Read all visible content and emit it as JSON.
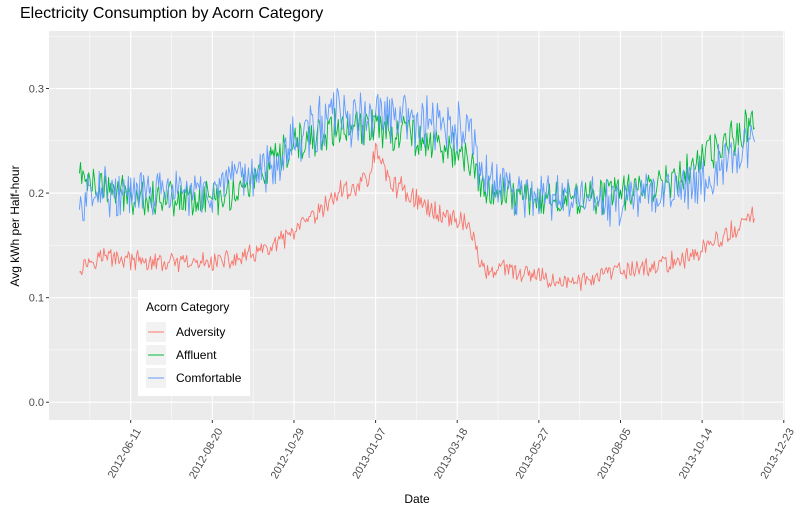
{
  "chart_data": {
    "type": "line",
    "title": "Electricity Consumption by Acorn Category",
    "xlabel": "Date",
    "ylabel": "Avg kWh per Half-hour",
    "x_start": "2012-04-28",
    "x_end": "2013-11-28",
    "x_ticks": [
      "2012-06-11",
      "2012-08-20",
      "2012-10-29",
      "2013-01-07",
      "2013-03-18",
      "2013-05-27",
      "2013-08-05",
      "2013-10-14",
      "2013-12-23"
    ],
    "y_ticks": [
      "0.0",
      "0.1",
      "0.2",
      "0.3"
    ],
    "ylim": [
      -0.017,
      0.355
    ],
    "grid": true,
    "legend": {
      "title": "Acorn Category",
      "position": "inside-bottom-left"
    },
    "series": [
      {
        "name": "Adversity",
        "color": "#F8766D",
        "points": [
          [
            "2012-04-28",
            0.13
          ],
          [
            "2012-05-15",
            0.14
          ],
          [
            "2012-06-01",
            0.138
          ],
          [
            "2012-06-15",
            0.135
          ],
          [
            "2012-07-01",
            0.133
          ],
          [
            "2012-07-20",
            0.133
          ],
          [
            "2012-08-05",
            0.132
          ],
          [
            "2012-08-20",
            0.135
          ],
          [
            "2012-09-05",
            0.135
          ],
          [
            "2012-09-20",
            0.14
          ],
          [
            "2012-10-05",
            0.145
          ],
          [
            "2012-10-20",
            0.155
          ],
          [
            "2012-11-05",
            0.168
          ],
          [
            "2012-11-20",
            0.18
          ],
          [
            "2012-12-05",
            0.2
          ],
          [
            "2012-12-20",
            0.205
          ],
          [
            "2013-01-01",
            0.215
          ],
          [
            "2013-01-07",
            0.24
          ],
          [
            "2013-01-20",
            0.21
          ],
          [
            "2013-02-05",
            0.2
          ],
          [
            "2013-02-20",
            0.185
          ],
          [
            "2013-03-05",
            0.18
          ],
          [
            "2013-03-18",
            0.175
          ],
          [
            "2013-03-28",
            0.17
          ],
          [
            "2013-04-05",
            0.14
          ],
          [
            "2013-04-10",
            0.125
          ],
          [
            "2013-04-25",
            0.128
          ],
          [
            "2013-05-10",
            0.123
          ],
          [
            "2013-05-27",
            0.12
          ],
          [
            "2013-06-15",
            0.115
          ],
          [
            "2013-07-01",
            0.115
          ],
          [
            "2013-07-20",
            0.122
          ],
          [
            "2013-08-05",
            0.125
          ],
          [
            "2013-08-20",
            0.128
          ],
          [
            "2013-09-05",
            0.13
          ],
          [
            "2013-09-20",
            0.135
          ],
          [
            "2013-10-05",
            0.14
          ],
          [
            "2013-10-20",
            0.15
          ],
          [
            "2013-11-05",
            0.16
          ],
          [
            "2013-11-20",
            0.172
          ],
          [
            "2013-11-28",
            0.18
          ]
        ]
      },
      {
        "name": "Affluent",
        "color": "#00BA38",
        "points": [
          [
            "2012-04-28",
            0.22
          ],
          [
            "2012-05-15",
            0.205
          ],
          [
            "2012-06-01",
            0.2
          ],
          [
            "2012-06-15",
            0.198
          ],
          [
            "2012-07-01",
            0.196
          ],
          [
            "2012-07-20",
            0.197
          ],
          [
            "2012-08-05",
            0.195
          ],
          [
            "2012-08-20",
            0.195
          ],
          [
            "2012-09-05",
            0.2
          ],
          [
            "2012-09-20",
            0.21
          ],
          [
            "2012-10-05",
            0.22
          ],
          [
            "2012-10-20",
            0.235
          ],
          [
            "2012-11-05",
            0.248
          ],
          [
            "2012-11-20",
            0.255
          ],
          [
            "2012-12-05",
            0.262
          ],
          [
            "2012-12-20",
            0.26
          ],
          [
            "2013-01-01",
            0.262
          ],
          [
            "2013-01-07",
            0.27
          ],
          [
            "2013-01-20",
            0.26
          ],
          [
            "2013-02-05",
            0.258
          ],
          [
            "2013-02-20",
            0.252
          ],
          [
            "2013-03-05",
            0.245
          ],
          [
            "2013-03-18",
            0.24
          ],
          [
            "2013-03-28",
            0.23
          ],
          [
            "2013-04-05",
            0.21
          ],
          [
            "2013-04-10",
            0.205
          ],
          [
            "2013-04-25",
            0.2
          ],
          [
            "2013-05-10",
            0.198
          ],
          [
            "2013-05-27",
            0.195
          ],
          [
            "2013-06-15",
            0.195
          ],
          [
            "2013-07-01",
            0.197
          ],
          [
            "2013-07-20",
            0.198
          ],
          [
            "2013-08-05",
            0.2
          ],
          [
            "2013-08-20",
            0.205
          ],
          [
            "2013-09-05",
            0.21
          ],
          [
            "2013-09-20",
            0.215
          ],
          [
            "2013-10-05",
            0.225
          ],
          [
            "2013-10-20",
            0.235
          ],
          [
            "2013-11-05",
            0.248
          ],
          [
            "2013-11-20",
            0.262
          ],
          [
            "2013-11-28",
            0.265
          ]
        ]
      },
      {
        "name": "Comfortable",
        "color": "#619CFF",
        "points": [
          [
            "2012-04-28",
            0.185
          ],
          [
            "2012-05-15",
            0.21
          ],
          [
            "2012-06-01",
            0.195
          ],
          [
            "2012-06-15",
            0.2
          ],
          [
            "2012-07-01",
            0.2
          ],
          [
            "2012-07-20",
            0.2
          ],
          [
            "2012-08-05",
            0.2
          ],
          [
            "2012-08-20",
            0.202
          ],
          [
            "2012-09-05",
            0.205
          ],
          [
            "2012-09-20",
            0.215
          ],
          [
            "2012-10-05",
            0.225
          ],
          [
            "2012-10-20",
            0.24
          ],
          [
            "2012-11-05",
            0.255
          ],
          [
            "2012-11-20",
            0.265
          ],
          [
            "2012-12-05",
            0.275
          ],
          [
            "2012-12-20",
            0.27
          ],
          [
            "2013-01-01",
            0.27
          ],
          [
            "2013-01-07",
            0.275
          ],
          [
            "2013-01-20",
            0.27
          ],
          [
            "2013-02-05",
            0.27
          ],
          [
            "2013-02-20",
            0.265
          ],
          [
            "2013-03-05",
            0.26
          ],
          [
            "2013-03-18",
            0.262
          ],
          [
            "2013-03-28",
            0.255
          ],
          [
            "2013-04-05",
            0.23
          ],
          [
            "2013-04-10",
            0.215
          ],
          [
            "2013-04-25",
            0.205
          ],
          [
            "2013-05-10",
            0.2
          ],
          [
            "2013-05-27",
            0.195
          ],
          [
            "2013-06-15",
            0.195
          ],
          [
            "2013-07-01",
            0.195
          ],
          [
            "2013-07-20",
            0.192
          ],
          [
            "2013-08-05",
            0.19
          ],
          [
            "2013-08-20",
            0.195
          ],
          [
            "2013-09-05",
            0.2
          ],
          [
            "2013-09-20",
            0.205
          ],
          [
            "2013-10-05",
            0.21
          ],
          [
            "2013-10-20",
            0.22
          ],
          [
            "2013-11-05",
            0.228
          ],
          [
            "2013-11-20",
            0.24
          ],
          [
            "2013-11-28",
            0.245
          ]
        ]
      }
    ]
  }
}
